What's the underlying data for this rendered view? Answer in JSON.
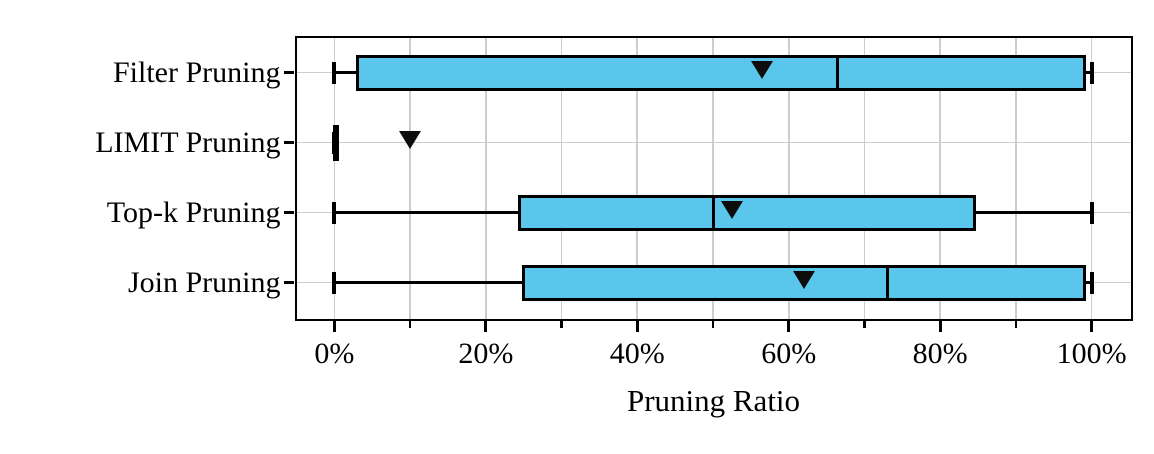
{
  "chart_data": {
    "type": "boxplot",
    "orientation": "horizontal",
    "title": "",
    "xlabel": "Pruning Ratio",
    "ylabel": "",
    "categories": [
      "Filter Pruning",
      "LIMIT Pruning",
      "Top-k Pruning",
      "Join Pruning"
    ],
    "series": [
      {
        "name": "Filter Pruning",
        "min": 0,
        "q1": 3,
        "median": 66.5,
        "q3": 99,
        "max": 100,
        "mean": 56.5
      },
      {
        "name": "LIMIT Pruning",
        "min": 0,
        "q1": 0,
        "median": 0,
        "q3": 0,
        "max": 0,
        "mean": 10
      },
      {
        "name": "Top-k Pruning",
        "min": 0,
        "q1": 24.5,
        "median": 50,
        "q3": 84.5,
        "max": 100,
        "mean": 52.5
      },
      {
        "name": "Join Pruning",
        "min": 0,
        "q1": 25,
        "median": 73,
        "q3": 99,
        "max": 100,
        "mean": 62
      }
    ],
    "x_ticks_major": [
      0,
      20,
      40,
      60,
      80,
      100
    ],
    "x_tick_labels": [
      "0%",
      "20%",
      "40%",
      "60%",
      "80%",
      "100%"
    ],
    "x_ticks_minor": [
      10,
      30,
      50,
      70,
      90
    ],
    "xlim": [
      -5,
      105
    ],
    "grid": true,
    "legend": "none",
    "mean_marker_shape": "triangle-down",
    "colors": {
      "box_fill": "#5bc6ec",
      "box_edge": "#000000",
      "median": "#000000",
      "whisker": "#000000",
      "mean_marker": "#0d0d0d",
      "grid": "#cdcdcd",
      "background": "#ffffff",
      "text": "#000000"
    }
  }
}
